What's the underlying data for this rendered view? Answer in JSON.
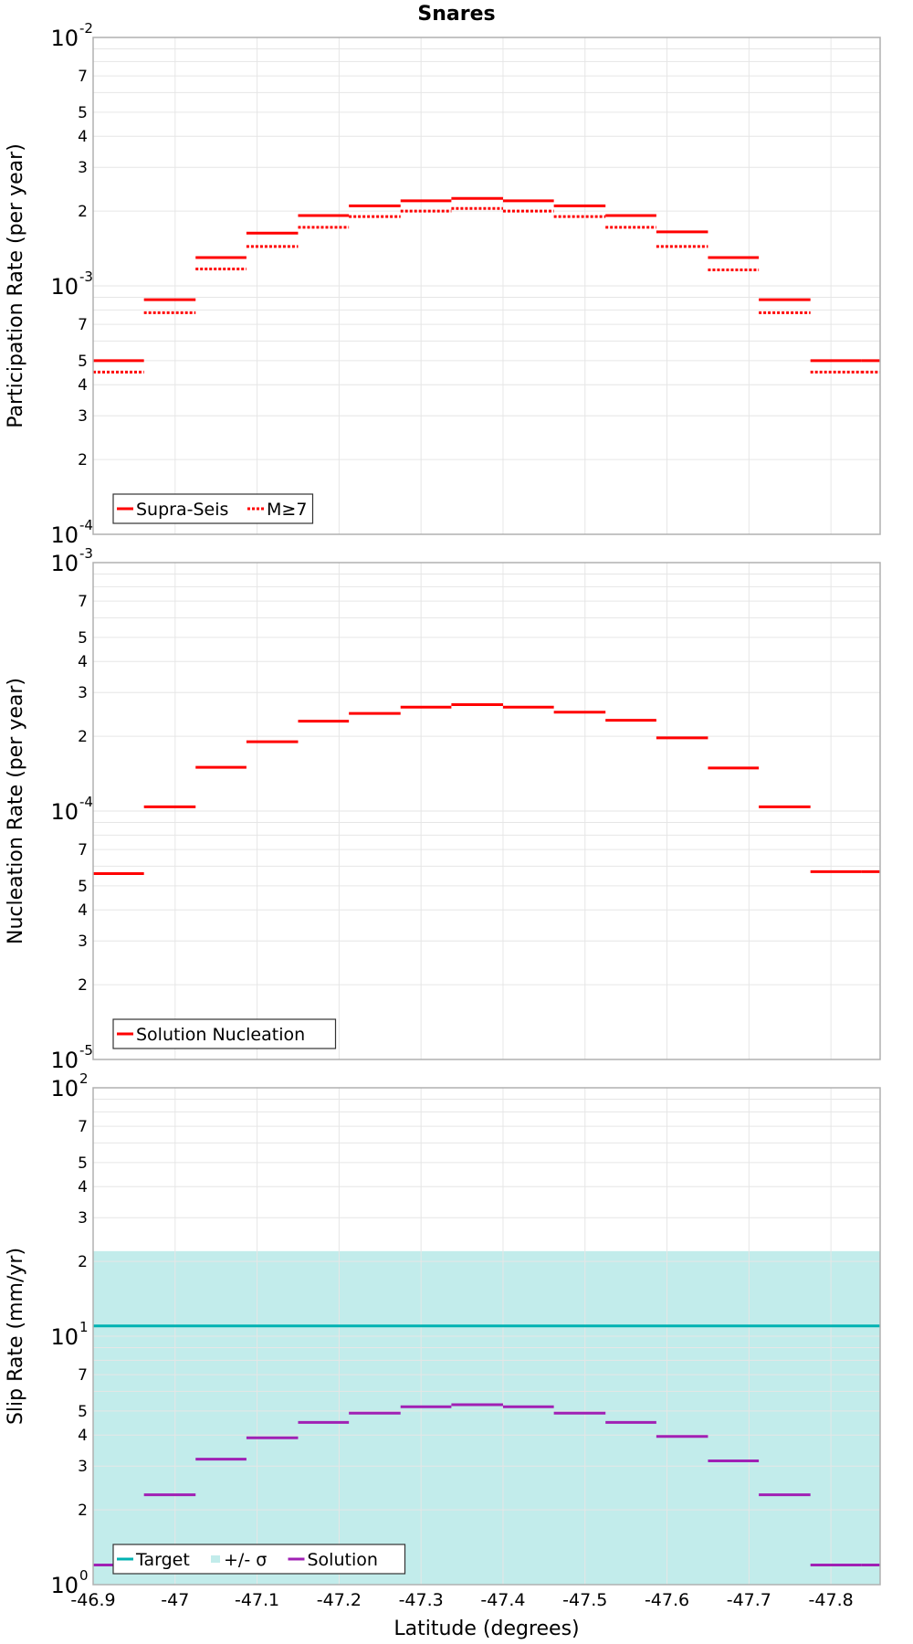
{
  "title": "Snares",
  "colors": {
    "red": "#ff0000",
    "teal": "#00b2b2",
    "band": "#c2eceb",
    "purple": "#a020b4",
    "grid": "#e6e6e6",
    "frame": "#b0b0b0"
  },
  "chart_data": [
    {
      "type": "line",
      "name": "participation",
      "ylabel": "Participation Rate (per year)",
      "xlabel": "",
      "yscale": "log",
      "xlim": [
        -46.9,
        -47.86
      ],
      "ylim": [
        0.0001,
        0.01
      ],
      "y_major_ticks": [
        {
          "base": "10",
          "exp": "-4"
        },
        {
          "base": "10",
          "exp": "-3"
        },
        {
          "base": "10",
          "exp": "-2"
        }
      ],
      "y_minor_ticks": [
        "2",
        "3",
        "4",
        "5",
        "7"
      ],
      "x_ticks": [
        "-46.9",
        "-47",
        "-47.1",
        "-47.2",
        "-47.3",
        "-47.4",
        "-47.5",
        "-47.6",
        "-47.7",
        "-47.8"
      ],
      "bins": [
        [
          -46.9,
          -46.962
        ],
        [
          -46.962,
          -47.025
        ],
        [
          -47.025,
          -47.087
        ],
        [
          -47.087,
          -47.15
        ],
        [
          -47.15,
          -47.212
        ],
        [
          -47.212,
          -47.275
        ],
        [
          -47.275,
          -47.337
        ],
        [
          -47.337,
          -47.4
        ],
        [
          -47.4,
          -47.462
        ],
        [
          -47.462,
          -47.525
        ],
        [
          -47.525,
          -47.587
        ],
        [
          -47.587,
          -47.65
        ],
        [
          -47.65,
          -47.712
        ],
        [
          -47.712,
          -47.775
        ],
        [
          -47.775,
          -47.837
        ],
        [
          -47.837,
          -47.86
        ]
      ],
      "series": [
        {
          "name": "Supra-Seis",
          "style": "solid",
          "color": "#ff0000",
          "values": [
            0.0005,
            0.00088,
            0.0013,
            0.00163,
            0.00192,
            0.0021,
            0.0022,
            0.00225,
            0.0022,
            0.0021,
            0.00192,
            0.00165,
            0.0013,
            0.00088,
            0.0005,
            0.0005
          ]
        },
        {
          "name": "M≥7",
          "style": "dotted",
          "color": "#ff0000",
          "values": [
            0.00045,
            0.00078,
            0.00117,
            0.00144,
            0.00172,
            0.0019,
            0.002,
            0.00205,
            0.002,
            0.0019,
            0.00172,
            0.00144,
            0.00116,
            0.00078,
            0.00045,
            0.00045
          ]
        }
      ],
      "legend": [
        {
          "label": "Supra-Seis",
          "style": "solid"
        },
        {
          "label": "M≥7",
          "style": "dotted"
        }
      ],
      "legend_position": "bottom-left"
    },
    {
      "type": "line",
      "name": "nucleation",
      "ylabel": "Nucleation Rate (per year)",
      "xlabel": "",
      "yscale": "log",
      "xlim": [
        -46.9,
        -47.86
      ],
      "ylim": [
        1e-05,
        0.001
      ],
      "y_major_ticks": [
        {
          "base": "10",
          "exp": "-5"
        },
        {
          "base": "10",
          "exp": "-4"
        },
        {
          "base": "10",
          "exp": "-3"
        }
      ],
      "y_minor_ticks": [
        "2",
        "3",
        "4",
        "5",
        "7"
      ],
      "x_ticks": [
        "-46.9",
        "-47",
        "-47.1",
        "-47.2",
        "-47.3",
        "-47.4",
        "-47.5",
        "-47.6",
        "-47.7",
        "-47.8"
      ],
      "bins": [
        [
          -46.9,
          -46.962
        ],
        [
          -46.962,
          -47.025
        ],
        [
          -47.025,
          -47.087
        ],
        [
          -47.087,
          -47.15
        ],
        [
          -47.15,
          -47.212
        ],
        [
          -47.212,
          -47.275
        ],
        [
          -47.275,
          -47.337
        ],
        [
          -47.337,
          -47.4
        ],
        [
          -47.4,
          -47.462
        ],
        [
          -47.462,
          -47.525
        ],
        [
          -47.525,
          -47.587
        ],
        [
          -47.587,
          -47.65
        ],
        [
          -47.65,
          -47.712
        ],
        [
          -47.712,
          -47.775
        ],
        [
          -47.775,
          -47.837
        ],
        [
          -47.837,
          -47.86
        ]
      ],
      "series": [
        {
          "name": "Solution Nucleation",
          "style": "solid",
          "color": "#ff0000",
          "values": [
            5.6e-05,
            0.000104,
            0.00015,
            0.00019,
            0.00023,
            0.000247,
            0.000262,
            0.000268,
            0.000262,
            0.00025,
            0.000232,
            0.000197,
            0.000149,
            0.000104,
            5.7e-05,
            5.7e-05
          ]
        }
      ],
      "legend": [
        {
          "label": "Solution Nucleation",
          "style": "solid"
        }
      ],
      "legend_position": "bottom-left"
    },
    {
      "type": "line",
      "name": "slip",
      "ylabel": "Slip Rate (mm/yr)",
      "xlabel": "Latitude (degrees)",
      "yscale": "log",
      "xlim": [
        -46.9,
        -47.86
      ],
      "ylim": [
        1,
        100
      ],
      "y_major_ticks": [
        {
          "base": "10",
          "exp": "0"
        },
        {
          "base": "10",
          "exp": "1"
        },
        {
          "base": "10",
          "exp": "2"
        }
      ],
      "y_minor_ticks": [
        "2",
        "3",
        "4",
        "5",
        "7"
      ],
      "x_ticks": [
        "-46.9",
        "-47",
        "-47.1",
        "-47.2",
        "-47.3",
        "-47.4",
        "-47.5",
        "-47.6",
        "-47.7",
        "-47.8"
      ],
      "bins": [
        [
          -46.9,
          -46.962
        ],
        [
          -46.962,
          -47.025
        ],
        [
          -47.025,
          -47.087
        ],
        [
          -47.087,
          -47.15
        ],
        [
          -47.15,
          -47.212
        ],
        [
          -47.212,
          -47.275
        ],
        [
          -47.275,
          -47.337
        ],
        [
          -47.337,
          -47.4
        ],
        [
          -47.4,
          -47.462
        ],
        [
          -47.462,
          -47.525
        ],
        [
          -47.525,
          -47.587
        ],
        [
          -47.587,
          -47.65
        ],
        [
          -47.65,
          -47.712
        ],
        [
          -47.712,
          -47.775
        ],
        [
          -47.775,
          -47.837
        ],
        [
          -47.837,
          -47.86
        ]
      ],
      "target": 11,
      "band": [
        0,
        22
      ],
      "series": [
        {
          "name": "Solution",
          "style": "solid",
          "color": "#a020b4",
          "values": [
            1.2,
            2.3,
            3.2,
            3.9,
            4.5,
            4.9,
            5.2,
            5.3,
            5.2,
            4.9,
            4.5,
            3.95,
            3.15,
            2.3,
            1.2,
            1.2
          ]
        }
      ],
      "legend": [
        {
          "label": "Target",
          "style": "solid",
          "color": "#00b2b2"
        },
        {
          "label": "+/- σ",
          "style": "band",
          "color": "#c2eceb"
        },
        {
          "label": "Solution",
          "style": "solid",
          "color": "#a020b4"
        }
      ],
      "legend_position": "bottom-left"
    }
  ]
}
